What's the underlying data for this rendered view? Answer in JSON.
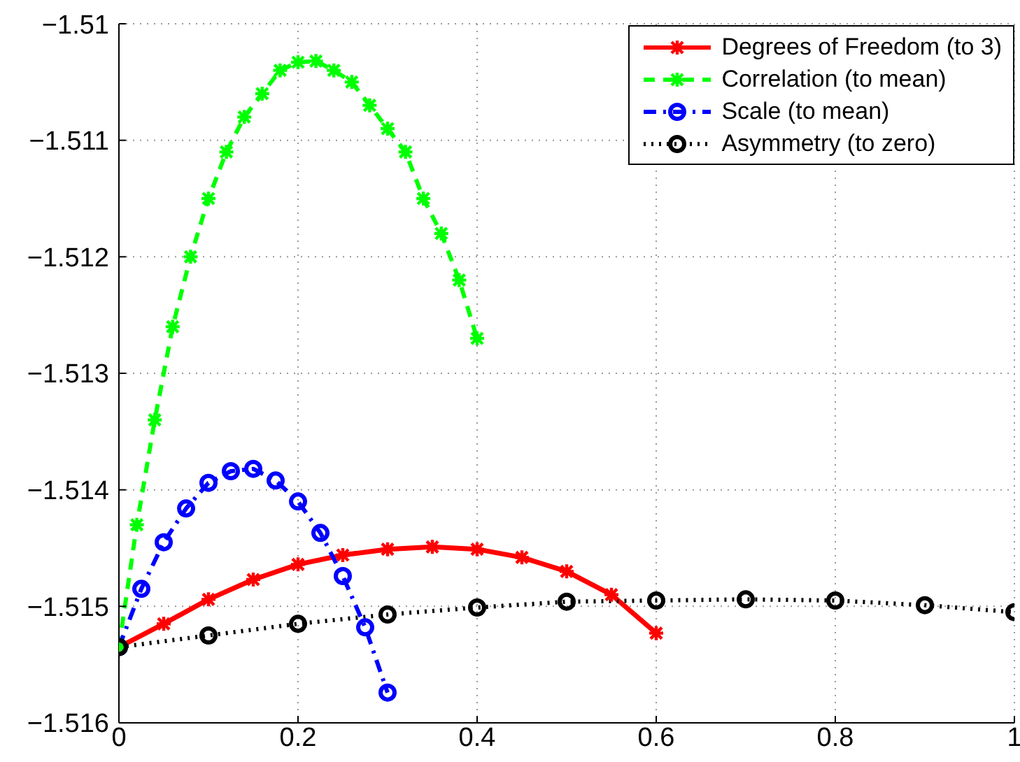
{
  "chart_data": {
    "type": "line",
    "series": [
      {
        "name": "Degrees of Freedom (to 3)",
        "color": "#ff0000",
        "marker": "cross",
        "line_style": "solid",
        "x": [
          0,
          0.05,
          0.1,
          0.15,
          0.2,
          0.25,
          0.3,
          0.35,
          0.4,
          0.45,
          0.5,
          0.55,
          0.6
        ],
        "values": [
          -1.51535,
          -1.51515,
          -1.51494,
          -1.51477,
          -1.51464,
          -1.51456,
          -1.51451,
          -1.51449,
          -1.51451,
          -1.51458,
          -1.5147,
          -1.5149,
          -1.51523
        ]
      },
      {
        "name": "Correlation (to mean)",
        "color": "#00ff00",
        "marker": "cross",
        "line_style": "dashed",
        "x": [
          0,
          0.02,
          0.04,
          0.06,
          0.08,
          0.1,
          0.12,
          0.14,
          0.16,
          0.18,
          0.2,
          0.22,
          0.24,
          0.26,
          0.28,
          0.3,
          0.32,
          0.34,
          0.36,
          0.38,
          0.4
        ],
        "values": [
          -1.51535,
          -1.5143,
          -1.5134,
          -1.5126,
          -1.512,
          -1.5115,
          -1.5111,
          -1.5108,
          -1.5106,
          -1.5104,
          -1.51033,
          -1.51032,
          -1.5104,
          -1.5105,
          -1.5107,
          -1.5109,
          -1.5111,
          -1.5115,
          -1.5118,
          -1.5122,
          -1.5127
        ]
      },
      {
        "name": "Scale (to mean)",
        "color": "#0000ff",
        "marker": "circle",
        "line_style": "dashdot",
        "x": [
          0,
          0.025,
          0.05,
          0.075,
          0.1,
          0.125,
          0.15,
          0.175,
          0.2,
          0.225,
          0.25,
          0.275,
          0.3
        ],
        "values": [
          -1.51535,
          -1.51485,
          -1.51445,
          -1.51416,
          -1.51394,
          -1.51384,
          -1.51382,
          -1.51392,
          -1.5141,
          -1.51437,
          -1.51474,
          -1.51518,
          -1.51574
        ]
      },
      {
        "name": "Asymmetry (to zero)",
        "color": "#000000",
        "marker": "circle",
        "line_style": "dotted",
        "x": [
          0,
          0.1,
          0.2,
          0.3,
          0.4,
          0.5,
          0.6,
          0.7,
          0.8,
          0.9,
          1
        ],
        "values": [
          -1.51535,
          -1.51525,
          -1.51515,
          -1.51507,
          -1.51501,
          -1.51496,
          -1.51495,
          -1.51494,
          -1.51495,
          -1.51499,
          -1.51505
        ]
      }
    ],
    "xlim": [
      0,
      1
    ],
    "xticks": [
      0,
      0.2,
      0.4,
      0.6,
      0.8,
      1
    ],
    "ylim": [
      -1.516,
      -1.51
    ],
    "yticks": [
      -1.516,
      -1.515,
      -1.514,
      -1.513,
      -1.512,
      -1.511,
      -1.51
    ],
    "grid": true,
    "legend": "top right"
  }
}
